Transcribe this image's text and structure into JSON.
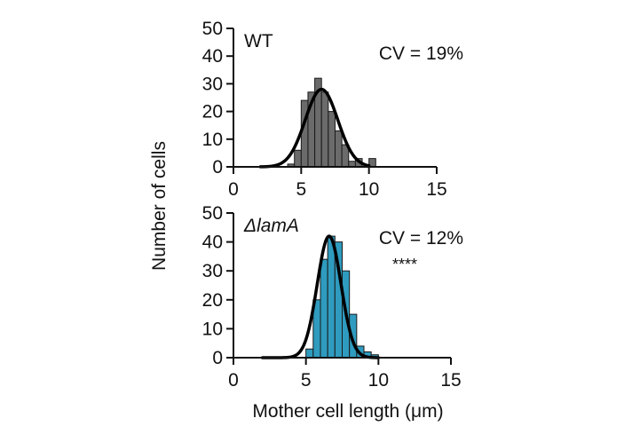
{
  "figure": {
    "shared_ylabel": "Number of cells",
    "shared_xlabel": "Mother cell length (μm)"
  },
  "chart_data": [
    {
      "type": "bar",
      "panel": "top",
      "panel_label": "WT",
      "panel_label_italic": false,
      "annotation": "CV = 19%",
      "significance": "",
      "bar_color": "#6b6b6b",
      "bin_width": 0.5,
      "bins": [
        4.25,
        4.75,
        5.25,
        5.75,
        6.25,
        6.75,
        7.25,
        7.75,
        8.25,
        8.75,
        9.25,
        9.75,
        10.25
      ],
      "values": [
        1,
        6,
        24,
        27,
        32,
        27,
        20,
        13,
        8,
        2,
        3,
        0,
        3
      ],
      "fit_curve": {
        "type": "gaussian",
        "peak": 28,
        "mean": 6.5,
        "sd": 1.2
      },
      "fit_range": [
        2,
        10
      ],
      "xlim": [
        0,
        15
      ],
      "ylim": [
        0,
        50
      ],
      "xticks": [
        0,
        5,
        10,
        15
      ],
      "yticks": [
        0,
        10,
        20,
        30,
        40,
        50
      ],
      "xlabel": "",
      "ylabel": ""
    },
    {
      "type": "bar",
      "panel": "bottom",
      "panel_label": "ΔlamA",
      "panel_label_italic": true,
      "annotation": "CV = 12%",
      "significance": "****",
      "bar_color": "#2f9bbf",
      "bin_width": 0.5,
      "bins": [
        5.25,
        5.75,
        6.25,
        6.75,
        7.25,
        7.75,
        8.25,
        8.75,
        9.25,
        9.75
      ],
      "values": [
        3,
        20,
        34,
        42,
        40,
        30,
        15,
        4,
        2,
        1
      ],
      "fit_curve": {
        "type": "gaussian",
        "peak": 42,
        "mean": 6.6,
        "sd": 0.82
      },
      "fit_range": [
        2,
        10
      ],
      "xlim": [
        0,
        15
      ],
      "ylim": [
        0,
        50
      ],
      "xticks": [
        0,
        5,
        10,
        15
      ],
      "yticks": [
        0,
        10,
        20,
        30,
        40,
        50
      ],
      "xlabel": "",
      "ylabel": ""
    }
  ]
}
